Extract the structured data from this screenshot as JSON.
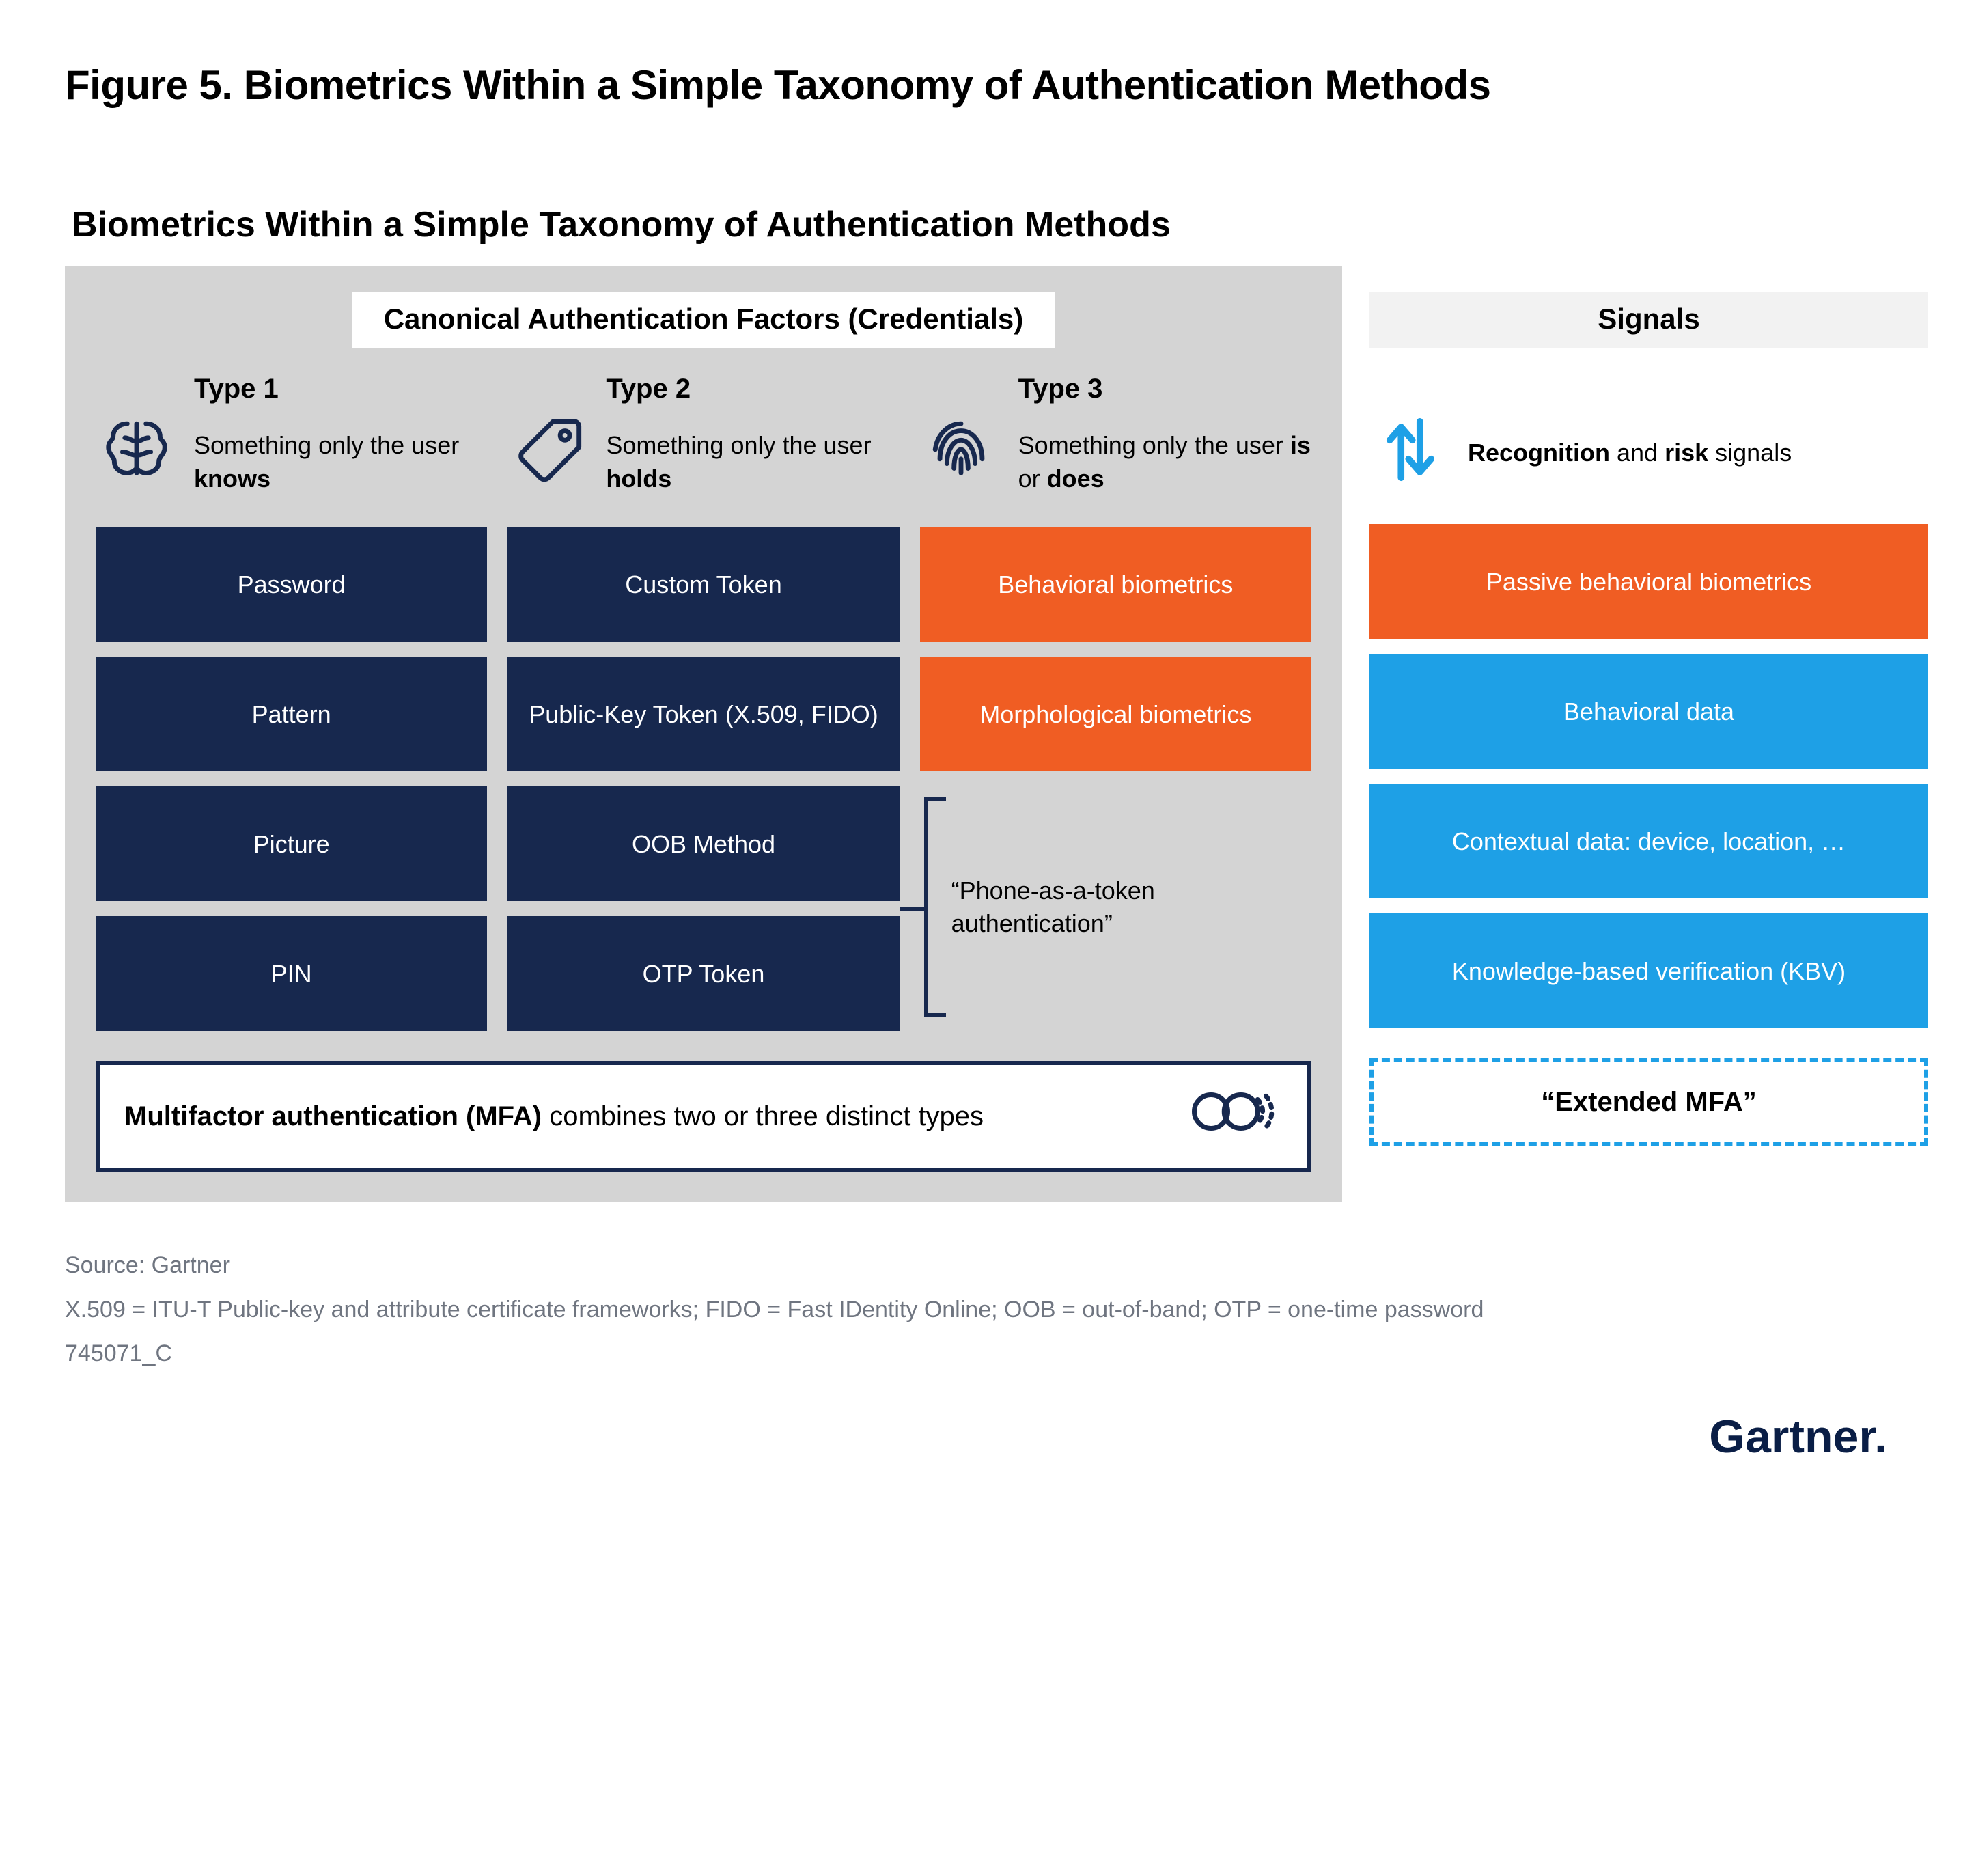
{
  "figure_title": "Figure 5. Biometrics Within a Simple Taxonomy of Authentication Methods",
  "subtitle": "Biometrics Within a Simple Taxonomy of Authentication Methods",
  "left": {
    "header": "Canonical Authentication Factors (Credentials)",
    "types": [
      {
        "label": "Type 1",
        "desc_html": "Something only the user <b>knows</b>",
        "icon": "brain",
        "tiles": [
          {
            "text": "Password",
            "color": "navy"
          },
          {
            "text": "Pattern",
            "color": "navy"
          },
          {
            "text": "Picture",
            "color": "navy"
          },
          {
            "text": "PIN",
            "color": "navy"
          }
        ]
      },
      {
        "label": "Type 2",
        "desc_html": "Something only the user <b>holds</b>",
        "icon": "tag",
        "tiles": [
          {
            "text": "Custom Token",
            "color": "navy"
          },
          {
            "text": "Public-Key Token (X.509, FIDO)",
            "color": "navy"
          },
          {
            "text": "OOB Method",
            "color": "navy"
          },
          {
            "text": "OTP Token",
            "color": "navy"
          }
        ]
      },
      {
        "label": "Type 3",
        "desc_html": "Something only the user <b>is</b> or <b>does</b>",
        "icon": "fingerprint",
        "tiles": [
          {
            "text": "Behavioral biometrics",
            "color": "orange"
          },
          {
            "text": "Morphological biometrics",
            "color": "orange"
          }
        ],
        "note": "“Phone-as-a-token authentication”"
      }
    ],
    "mfa_html": "<b>Multifactor authentication (MFA)</b> combines two or three distinct types"
  },
  "right": {
    "header": "Signals",
    "head_desc_html": "<b>Recognition</b> and <b>risk</b> signals",
    "tiles": [
      {
        "text": "Passive behavioral biometrics",
        "color": "orange"
      },
      {
        "text": "Behavioral data",
        "color": "sky"
      },
      {
        "text": "Contextual data: device, location, …",
        "color": "sky"
      },
      {
        "text": "Knowledge-based verification (KBV)",
        "color": "sky"
      }
    ],
    "ext": "“Extended MFA”"
  },
  "footer": {
    "source": "Source: Gartner",
    "defs": "X.509 = ITU-T Public-key and attribute certificate frameworks; FIDO = Fast IDentity Online; OOB = out-of-band; OTP = one-time password",
    "id": "745071_C",
    "brand": "Gartner"
  },
  "colors": {
    "navy": "#17284e",
    "orange": "#f05d23",
    "sky": "#1ea0e6",
    "panel": "#d4d4d4",
    "muted": "#6f7580",
    "brand": "#0a1e46",
    "signals_bg": "#f2f2f2"
  }
}
